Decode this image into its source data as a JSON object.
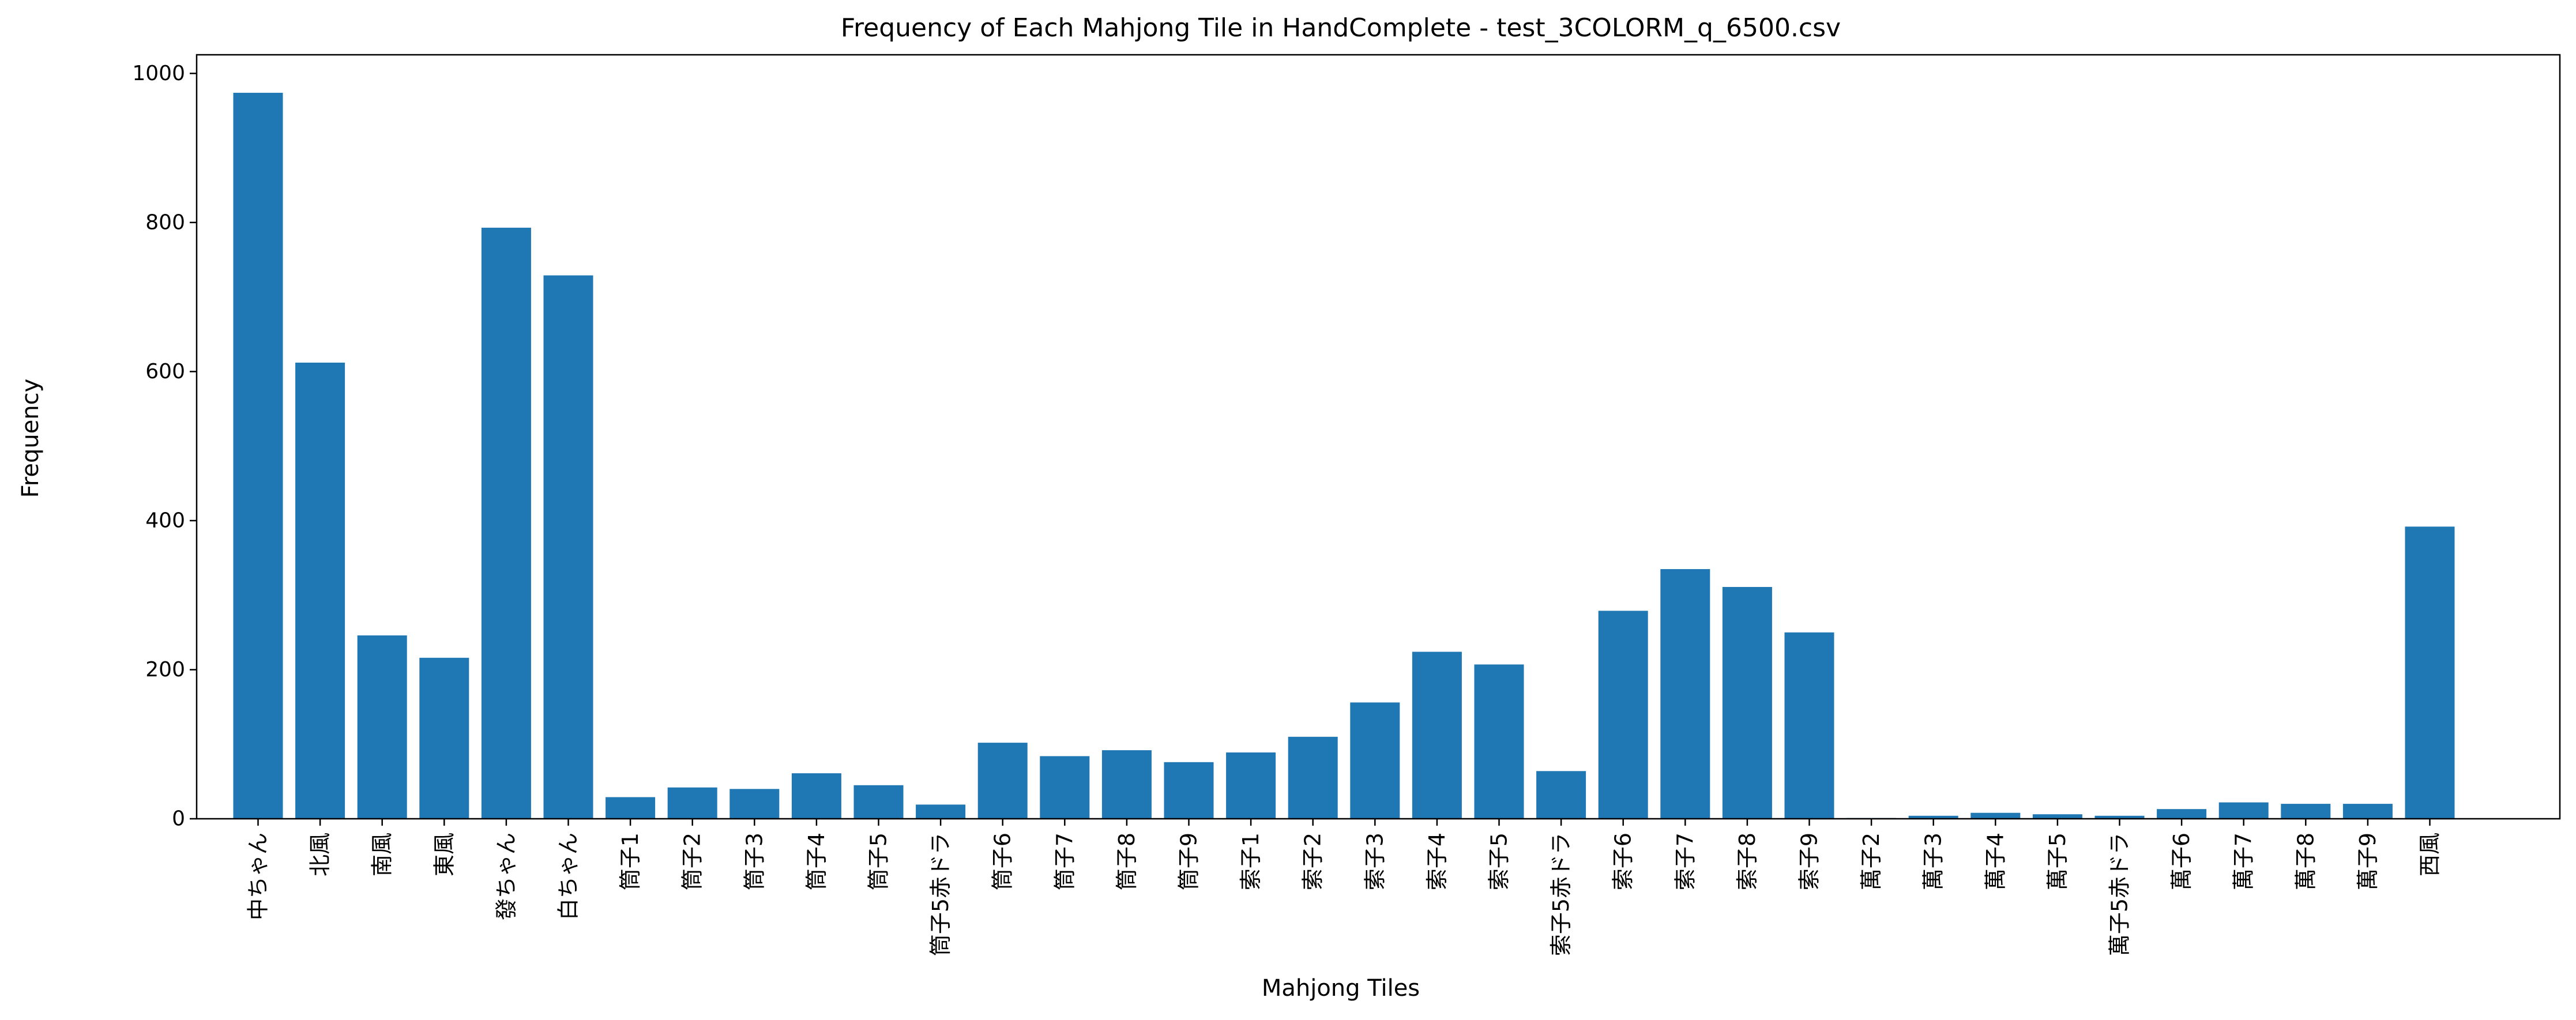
{
  "chart_data": {
    "type": "bar",
    "title": "Frequency of Each Mahjong Tile in HandComplete - test_3COLORM_q_6500.csv",
    "xlabel": "Mahjong Tiles",
    "ylabel": "Frequency",
    "ylim": [
      0,
      1025
    ],
    "yticks": [
      0,
      200,
      400,
      600,
      800,
      1000
    ],
    "grid": false,
    "bar_color": "#1f77b4",
    "categories": [
      "中ちゃん",
      "北風",
      "南風",
      "東風",
      "發ちゃん",
      "白ちゃん",
      "筒子1",
      "筒子2",
      "筒子3",
      "筒子4",
      "筒子5",
      "筒子5赤ドラ",
      "筒子6",
      "筒子7",
      "筒子8",
      "筒子9",
      "索子1",
      "索子2",
      "索子3",
      "索子4",
      "索子5",
      "索子5赤ドラ",
      "索子6",
      "索子7",
      "索子8",
      "索子9",
      "萬子2",
      "萬子3",
      "萬子4",
      "萬子5",
      "萬子5赤ドラ",
      "萬子6",
      "萬子7",
      "萬子8",
      "萬子9",
      "西風"
    ],
    "values": [
      974,
      612,
      246,
      216,
      793,
      729,
      29,
      42,
      40,
      61,
      45,
      19,
      102,
      84,
      92,
      76,
      89,
      110,
      156,
      224,
      207,
      64,
      279,
      335,
      311,
      250,
      1,
      4,
      8,
      6,
      4,
      13,
      22,
      20,
      20,
      392
    ]
  }
}
